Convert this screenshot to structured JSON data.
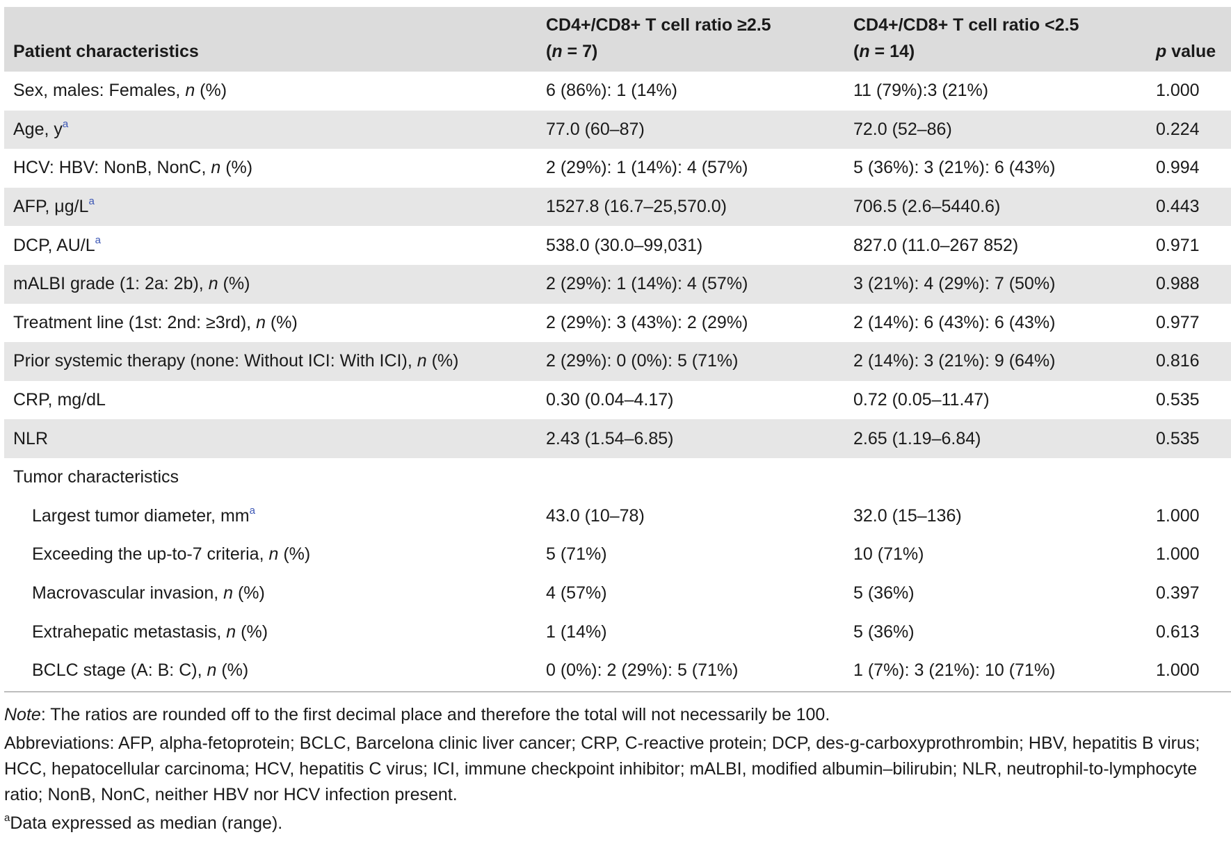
{
  "header": {
    "col1": "Patient characteristics",
    "col2_line1": "CD4+/CD8+ T cell ratio ≥2.5",
    "col2_n": "n",
    "col2_rest": " = 7)",
    "col3_line1": "CD4+/CD8+ T cell ratio <2.5",
    "col3_n": "n",
    "col3_rest": " = 14)",
    "col4_p": "p",
    "col4_rest": " value"
  },
  "rows": [
    {
      "label": "Sex, males: Females, ",
      "italic": "n",
      "tail": " (%)",
      "sup": "",
      "a": "6 (86%): 1 (14%)",
      "b": "11 (79%):3 (21%)",
      "p": "1.000"
    },
    {
      "label": "Age, y",
      "italic": "",
      "tail": "",
      "sup": "a",
      "a": "77.0 (60–87)",
      "b": "72.0 (52–86)",
      "p": "0.224"
    },
    {
      "label": "HCV: HBV: NonB, NonC, ",
      "italic": "n",
      "tail": " (%)",
      "sup": "",
      "a": "2 (29%): 1 (14%): 4 (57%)",
      "b": "5 (36%): 3 (21%): 6 (43%)",
      "p": "0.994"
    },
    {
      "label": "AFP, μg/L",
      "italic": "",
      "tail": "",
      "sup": "a",
      "a": "1527.8 (16.7–25,570.0)",
      "b": "706.5 (2.6–5440.6)",
      "p": "0.443"
    },
    {
      "label": "DCP, AU/L",
      "italic": "",
      "tail": "",
      "sup": "a",
      "a": "538.0 (30.0–99,031)",
      "b": "827.0 (11.0–267 852)",
      "p": "0.971"
    },
    {
      "label": "mALBI grade (1: 2a: 2b), ",
      "italic": "n",
      "tail": " (%)",
      "sup": "",
      "a": "2 (29%): 1 (14%): 4 (57%)",
      "b": "3 (21%): 4 (29%): 7 (50%)",
      "p": "0.988"
    },
    {
      "label": "Treatment line (1st: 2nd: ≥3rd), ",
      "italic": "n",
      "tail": " (%)",
      "sup": "",
      "a": "2 (29%): 3 (43%): 2 (29%)",
      "b": "2 (14%): 6 (43%): 6 (43%)",
      "p": "0.977"
    },
    {
      "label": "Prior systemic therapy (none: Without ICI: With ICI), ",
      "italic": "n",
      "tail": " (%)",
      "sup": "",
      "a": "2 (29%): 0 (0%): 5 (71%)",
      "b": "2 (14%): 3 (21%): 9 (64%)",
      "p": "0.816"
    },
    {
      "label": "CRP, mg/dL",
      "italic": "",
      "tail": "",
      "sup": "",
      "a": "0.30 (0.04–4.17)",
      "b": "0.72 (0.05–11.47)",
      "p": "0.535"
    },
    {
      "label": "NLR",
      "italic": "",
      "tail": "",
      "sup": "",
      "a": "2.43 (1.54–6.85)",
      "b": "2.65 (1.19–6.84)",
      "p": "0.535"
    }
  ],
  "section": "Tumor characteristics",
  "tumor_rows": [
    {
      "label": "Largest tumor diameter, mm",
      "italic": "",
      "tail": "",
      "sup": "a",
      "a": "43.0 (10–78)",
      "b": "32.0 (15–136)",
      "p": "1.000"
    },
    {
      "label": "Exceeding the up-to-7 criteria, ",
      "italic": "n",
      "tail": " (%)",
      "sup": "",
      "a": "5 (71%)",
      "b": "10 (71%)",
      "p": "1.000"
    },
    {
      "label": "Macrovascular invasion, ",
      "italic": "n",
      "tail": " (%)",
      "sup": "",
      "a": "4 (57%)",
      "b": "5 (36%)",
      "p": "0.397"
    },
    {
      "label": "Extrahepatic metastasis, ",
      "italic": "n",
      "tail": " (%)",
      "sup": "",
      "a": "1 (14%)",
      "b": "5 (36%)",
      "p": "0.613"
    },
    {
      "label": "BCLC stage (A: B: C), ",
      "italic": "n",
      "tail": " (%)",
      "sup": "",
      "a": "0 (0%): 2 (29%): 5 (71%)",
      "b": "1 (7%): 3 (21%): 10 (71%)",
      "p": "1.000"
    }
  ],
  "notes": {
    "note_label": "Note",
    "note_text": ": The ratios are rounded off to the first decimal place and therefore the total will not necessarily be 100.",
    "abbreviations": "Abbreviations: AFP, alpha-fetoprotein; BCLC, Barcelona clinic liver cancer; CRP, C-reactive protein; DCP, des-g-carboxyprothrombin; HBV, hepatitis B virus; HCC, hepatocellular carcinoma; HCV, hepatitis C virus; ICI, immune checkpoint inhibitor; mALBI, modified albumin–bilirubin; NLR, neutrophil-to-lymphocyte ratio; NonB, NonC, neither HBV nor HCV infection present.",
    "footnote_mark": "a",
    "footnote_text": "Data expressed as median (range)."
  }
}
